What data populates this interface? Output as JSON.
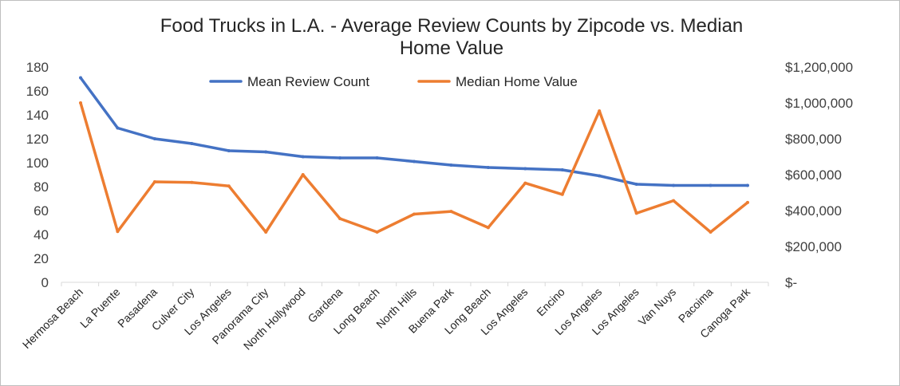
{
  "chart_data": {
    "type": "line",
    "title": "Food Trucks in L.A. - Average Review Counts by Zipcode vs. Median Home Value",
    "title_lines": [
      "Food Trucks in L.A. - Average Review Counts by Zipcode vs. Median",
      "Home Value"
    ],
    "categories": [
      "Hermosa Beach",
      "La Puente",
      "Pasadena",
      "Culver City",
      "Los Angeles",
      "Panorama City",
      "North Hollywood",
      "Gardena",
      "Long Beach",
      "North Hills",
      "Buena Park",
      "Long Beach",
      "Los Angeles",
      "Encino",
      "Los Angeles",
      "Los Angeles",
      "Van Nuys",
      "Pacoima",
      "Canoga Park"
    ],
    "series": [
      {
        "name": "Mean Review Count",
        "axis": "left",
        "color": "#4472C4",
        "values": [
          171,
          129,
          120,
          116,
          110,
          109,
          105,
          104,
          104,
          101,
          98,
          96,
          95,
          94,
          89,
          82,
          81,
          81,
          81
        ]
      },
      {
        "name": "Median Home Value",
        "axis": "right",
        "color": "#ED7D31",
        "values": [
          1000000,
          283000,
          560000,
          557000,
          537000,
          280000,
          600000,
          355000,
          280000,
          380000,
          395000,
          305000,
          553000,
          490000,
          955000,
          385000,
          455000,
          280000,
          445000
        ]
      }
    ],
    "y_left": {
      "min": 0,
      "max": 180,
      "step": 20,
      "tick_labels": [
        "0",
        "20",
        "40",
        "60",
        "80",
        "100",
        "120",
        "140",
        "160",
        "180"
      ]
    },
    "y_right": {
      "min": 0,
      "max": 1200000,
      "step": 200000,
      "tick_labels": [
        "$-",
        "$200,000",
        "$400,000",
        "$600,000",
        "$800,000",
        "$1,000,000",
        "$1,200,000"
      ]
    },
    "grid": false,
    "legend_position": "top"
  }
}
